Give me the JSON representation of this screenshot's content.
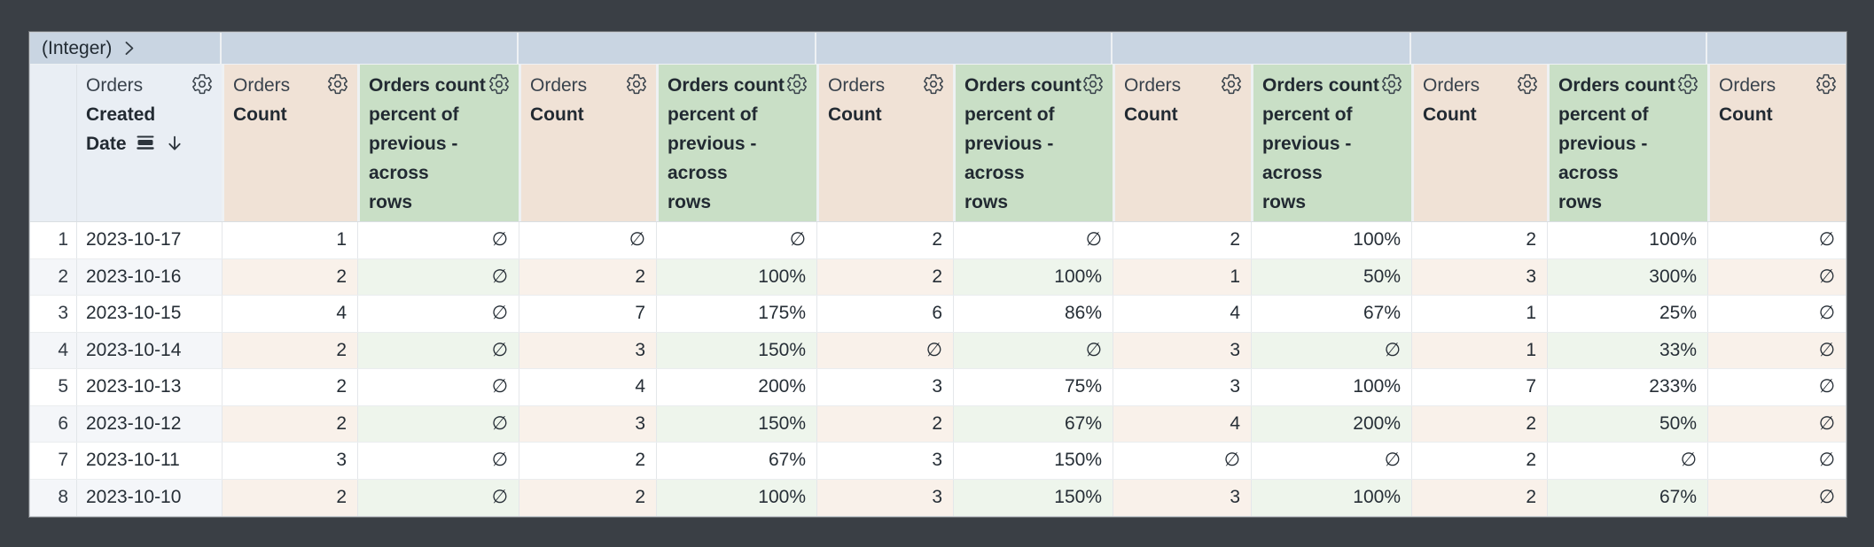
{
  "colors": {
    "frame_background": "#3a3f45",
    "pivot_band_bg": "#c9d5e2",
    "dimension_header_bg": "#e9eef4",
    "count_header_bg": "#f0e2d6",
    "percent_header_bg": "#c9dfc6",
    "even_row_dim": "#f4f6f9",
    "even_row_count": "#f9f1ea",
    "even_row_percent": "#eef5ec",
    "text": "#262e36"
  },
  "pivot_band": {
    "cells": [
      {
        "label": "(Integer)",
        "expand_icon": "chevron-right-icon"
      },
      {
        "label": ""
      },
      {
        "label": ""
      },
      {
        "label": ""
      },
      {
        "label": ""
      },
      {
        "label": ""
      },
      {
        "label": ""
      }
    ]
  },
  "dimension_header": {
    "view": "Orders",
    "field": "Created Date",
    "icons": [
      "rows-icon",
      "sort-desc-icon",
      "gear-icon"
    ]
  },
  "null_symbol": "∅",
  "measure_columns": [
    {
      "kind": "count",
      "view": "Orders",
      "field": "Count",
      "icon": "gear-icon"
    },
    {
      "kind": "percent",
      "label": "Orders count percent of previous - across rows",
      "label_lines": [
        "Orders count",
        "percent of",
        "previous -",
        "across",
        "rows"
      ],
      "icon": "gear-icon"
    },
    {
      "kind": "count",
      "view": "Orders",
      "field": "Count",
      "icon": "gear-icon"
    },
    {
      "kind": "percent",
      "label": "Orders count percent of previous - across rows",
      "label_lines": [
        "Orders count",
        "percent of",
        "previous -",
        "across",
        "rows"
      ],
      "icon": "gear-icon"
    },
    {
      "kind": "count",
      "view": "Orders",
      "field": "Count",
      "icon": "gear-icon"
    },
    {
      "kind": "percent",
      "label": "Orders count percent of previous - across rows",
      "label_lines": [
        "Orders count",
        "percent of",
        "previous -",
        "across",
        "rows"
      ],
      "icon": "gear-icon"
    },
    {
      "kind": "count",
      "view": "Orders",
      "field": "Count",
      "icon": "gear-icon"
    },
    {
      "kind": "percent",
      "label": "Orders count percent of previous - across rows",
      "label_lines": [
        "Orders count",
        "percent of",
        "previous -",
        "across",
        "rows"
      ],
      "icon": "gear-icon"
    },
    {
      "kind": "count",
      "view": "Orders",
      "field": "Count",
      "icon": "gear-icon"
    },
    {
      "kind": "percent",
      "label": "Orders count percent of previous - across rows",
      "label_lines": [
        "Orders count",
        "percent of",
        "previous -",
        "across",
        "rows"
      ],
      "icon": "gear-icon"
    },
    {
      "kind": "count",
      "view": "Orders",
      "field": "Count",
      "icon": "gear-icon"
    }
  ],
  "rows": [
    {
      "num": "1",
      "date": "2023-10-17",
      "cells": [
        "1",
        "∅",
        "∅",
        "∅",
        "2",
        "∅",
        "2",
        "100%",
        "2",
        "100%",
        "∅"
      ]
    },
    {
      "num": "2",
      "date": "2023-10-16",
      "cells": [
        "2",
        "∅",
        "2",
        "100%",
        "2",
        "100%",
        "1",
        "50%",
        "3",
        "300%",
        "∅"
      ]
    },
    {
      "num": "3",
      "date": "2023-10-15",
      "cells": [
        "4",
        "∅",
        "7",
        "175%",
        "6",
        "86%",
        "4",
        "67%",
        "1",
        "25%",
        "∅"
      ]
    },
    {
      "num": "4",
      "date": "2023-10-14",
      "cells": [
        "2",
        "∅",
        "3",
        "150%",
        "∅",
        "∅",
        "3",
        "∅",
        "1",
        "33%",
        "∅"
      ]
    },
    {
      "num": "5",
      "date": "2023-10-13",
      "cells": [
        "2",
        "∅",
        "4",
        "200%",
        "3",
        "75%",
        "3",
        "100%",
        "7",
        "233%",
        "∅"
      ]
    },
    {
      "num": "6",
      "date": "2023-10-12",
      "cells": [
        "2",
        "∅",
        "3",
        "150%",
        "2",
        "67%",
        "4",
        "200%",
        "2",
        "50%",
        "∅"
      ]
    },
    {
      "num": "7",
      "date": "2023-10-11",
      "cells": [
        "3",
        "∅",
        "2",
        "67%",
        "3",
        "150%",
        "∅",
        "∅",
        "2",
        "∅",
        "∅"
      ]
    },
    {
      "num": "8",
      "date": "2023-10-10",
      "cells": [
        "2",
        "∅",
        "2",
        "100%",
        "3",
        "150%",
        "3",
        "100%",
        "2",
        "67%",
        "∅"
      ]
    }
  ]
}
